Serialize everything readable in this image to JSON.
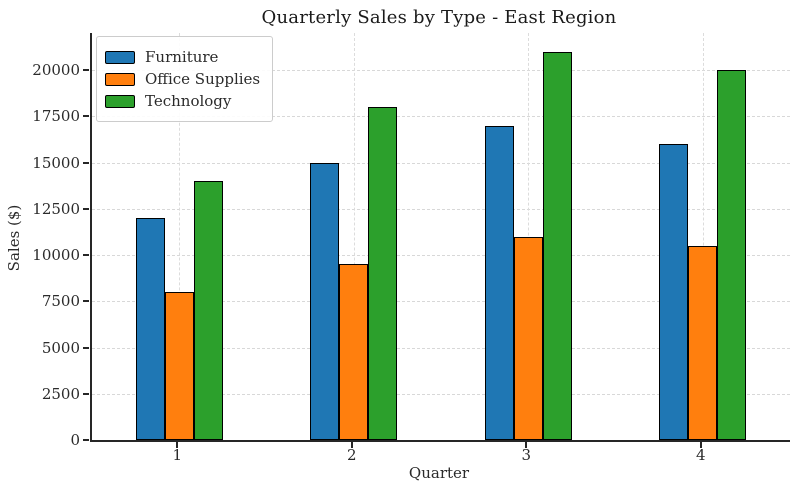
{
  "figure": {
    "background": "#ffffff",
    "spine_color": "#262626",
    "grid_color": "#d8d8d8",
    "text_color": "#2b2b2b"
  },
  "chart_data": {
    "type": "bar",
    "title": "Quarterly Sales by Type - East Region",
    "xlabel": "Quarter",
    "ylabel": "Sales ($)",
    "categories": [
      "1",
      "2",
      "3",
      "4"
    ],
    "series": [
      {
        "name": "Furniture",
        "color": "#1f77b4",
        "values": [
          12000,
          15000,
          17000,
          16000
        ]
      },
      {
        "name": "Office Supplies",
        "color": "#ff7f0e",
        "values": [
          8000,
          9500,
          11000,
          10500
        ]
      },
      {
        "name": "Technology",
        "color": "#2ca02c",
        "values": [
          14000,
          18000,
          21000,
          20000
        ]
      }
    ],
    "ylim": [
      0,
      22000
    ],
    "yticks": [
      0,
      2500,
      5000,
      7500,
      10000,
      12500,
      15000,
      17500,
      20000
    ],
    "grid": "both, dashed",
    "legend_position": "upper-left",
    "bar_edge_color": "#000000"
  }
}
